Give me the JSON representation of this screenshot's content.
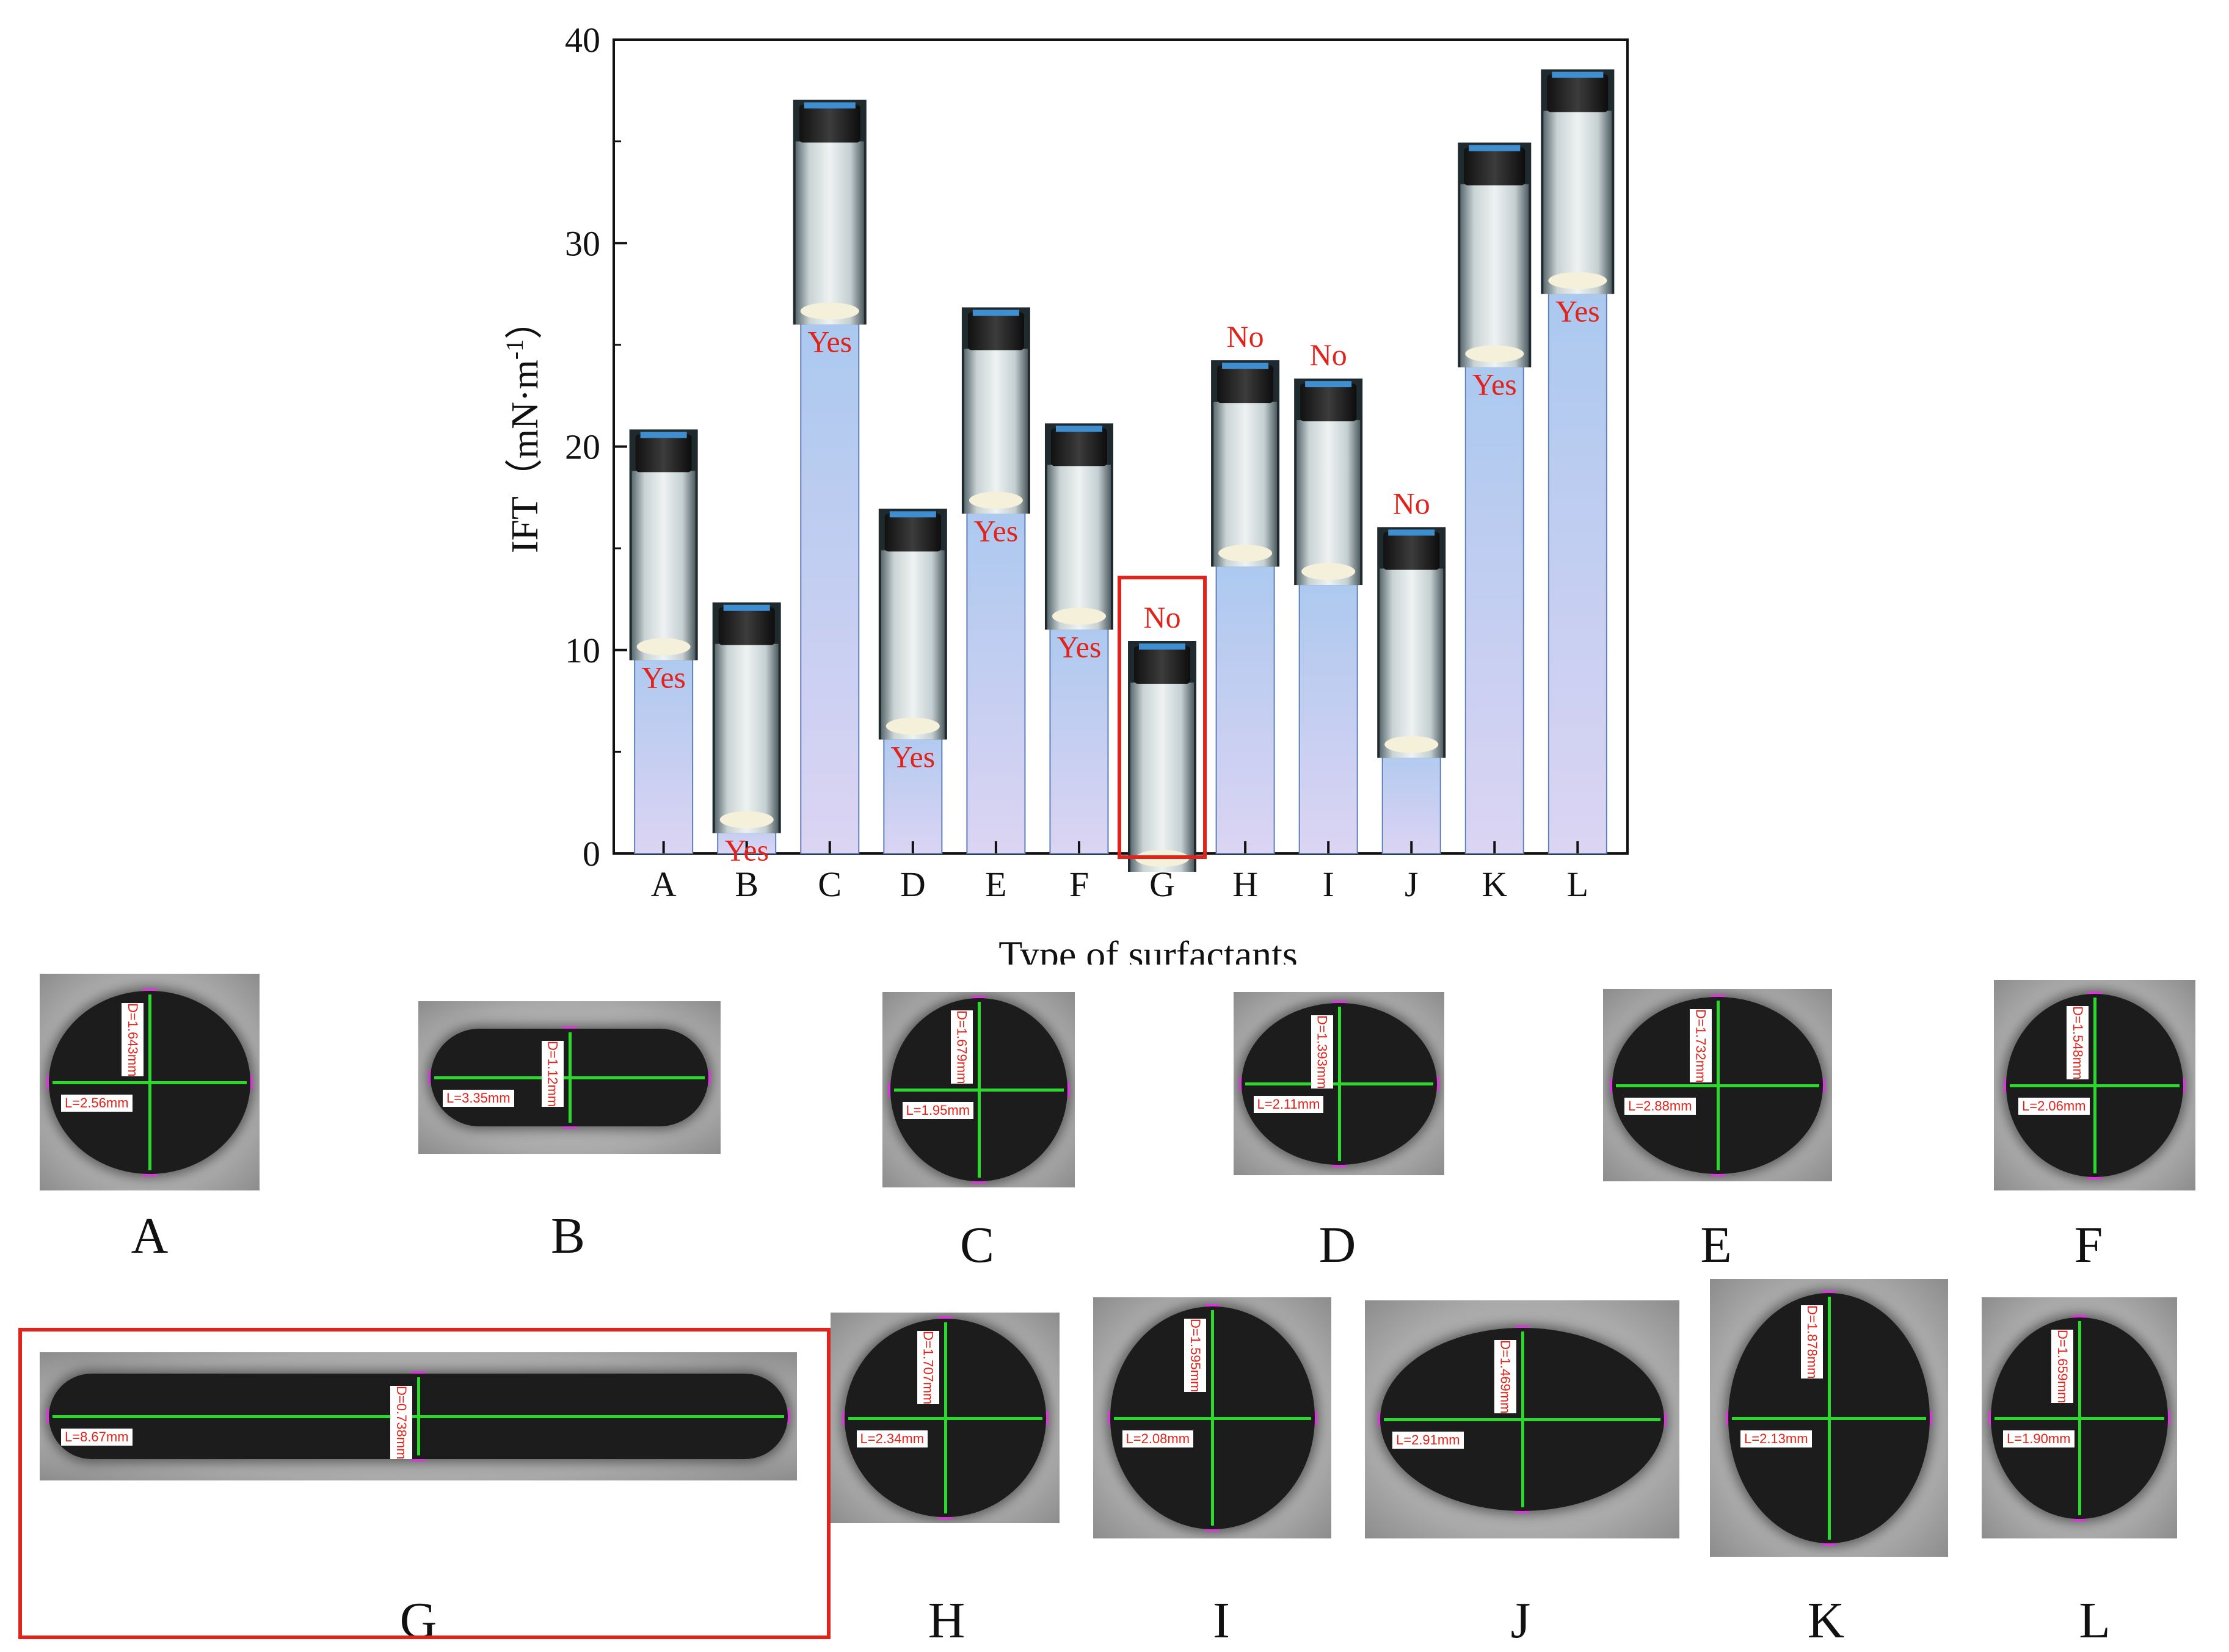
{
  "chart_data": {
    "type": "bar",
    "xlabel": "Type of surfactants",
    "ylabel_main": "IFT（mN·m",
    "ylabel_sup": "-1",
    "ylabel_close": "）",
    "ylim": [
      0,
      40
    ],
    "yticks": [
      "0",
      "10",
      "20",
      "30",
      "40"
    ],
    "categories": [
      "A",
      "B",
      "C",
      "D",
      "E",
      "F",
      "G",
      "H",
      "I",
      "J",
      "K",
      "L"
    ],
    "values": [
      10.7,
      2.2,
      27.2,
      6.8,
      17.9,
      12.2,
      0.3,
      15.3,
      14.4,
      5.9,
      25.1,
      28.7
    ],
    "annotations": [
      "Yes",
      "Yes",
      "Yes",
      "Yes",
      "Yes",
      "Yes",
      "No",
      "No",
      "No",
      "No",
      "Yes",
      "Yes"
    ],
    "highlighted_category": "G",
    "colors": {
      "bar_top": "#a9c8ef",
      "bar_bottom": "#d9d3f2",
      "bar_stroke": "#5f7fb5",
      "annotation": "#e0241b",
      "highlight": "#e0241b"
    }
  },
  "droplets": [
    {
      "label": "A",
      "d": "D=1.643mm",
      "l": "L=2.56mm"
    },
    {
      "label": "B",
      "d": "D=1.12mm",
      "l": "L=3.35mm"
    },
    {
      "label": "C",
      "d": "D=1.679mm",
      "l": "L=1.95mm"
    },
    {
      "label": "D",
      "d": "D=1.393mm",
      "l": "L=2.11mm"
    },
    {
      "label": "E",
      "d": "D=1.732mm",
      "l": "L=2.88mm"
    },
    {
      "label": "F",
      "d": "D=1.548mm",
      "l": "L=2.06mm"
    },
    {
      "label": "G",
      "d": "D=0.738mm",
      "l": "L=8.67mm"
    },
    {
      "label": "H",
      "d": "D=1.707mm",
      "l": "L=2.34mm"
    },
    {
      "label": "I",
      "d": "D=1.595mm",
      "l": "L=2.08mm"
    },
    {
      "label": "J",
      "d": "D=1.469mm",
      "l": "L=2.91mm"
    },
    {
      "label": "K",
      "d": "D=1.878mm",
      "l": "L=2.13mm"
    },
    {
      "label": "L",
      "d": "D=1.659mm",
      "l": "L=1.90mm"
    }
  ]
}
